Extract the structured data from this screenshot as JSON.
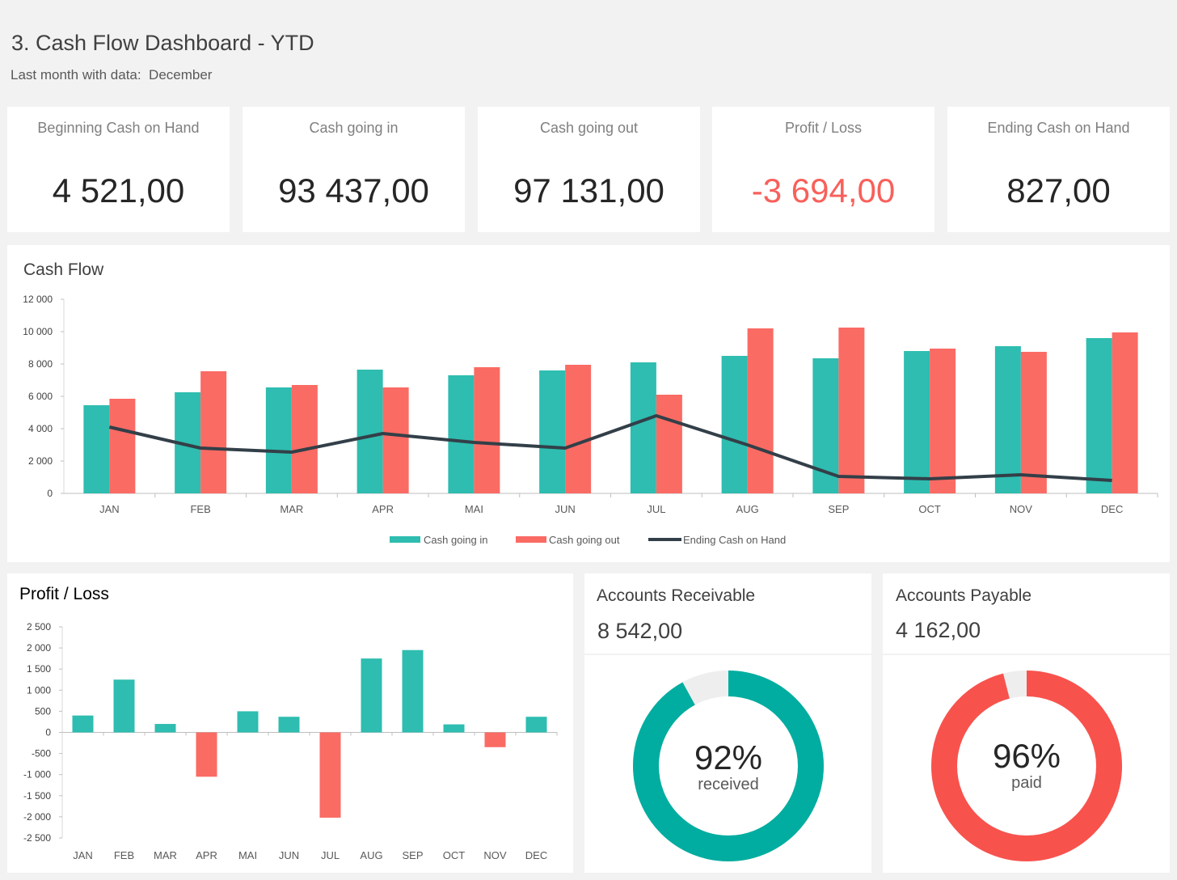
{
  "header": {
    "title": "3. Cash Flow Dashboard - YTD",
    "subtitle_label": "Last month with data:",
    "subtitle_value": "December"
  },
  "kpis": [
    {
      "label": "Beginning Cash on Hand",
      "value": "4 521,00"
    },
    {
      "label": "Cash going in",
      "value": "93 437,00"
    },
    {
      "label": "Cash going out",
      "value": "97 131,00"
    },
    {
      "label": "Profit / Loss",
      "value": "-3 694,00"
    },
    {
      "label": "Ending Cash on Hand",
      "value": "827,00"
    }
  ],
  "colors": {
    "teal": "#2ebdb0",
    "salmon": "#fa6b64",
    "dark": "#333f48",
    "donut_teal": "#00ada0",
    "donut_red": "#f8524d",
    "donut_rest": "#eeeeee"
  },
  "cashflow": {
    "title": "Cash Flow",
    "chart_data": {
      "type": "bar",
      "title": "Cash Flow",
      "categories": [
        "JAN",
        "FEB",
        "MAR",
        "APR",
        "MAI",
        "JUN",
        "JUL",
        "AUG",
        "SEP",
        "OCT",
        "NOV",
        "DEC"
      ],
      "series": [
        {
          "name": "Cash going in",
          "type": "bar",
          "values": [
            5450,
            6250,
            6550,
            7650,
            7300,
            7600,
            8100,
            8500,
            8350,
            8800,
            9100,
            9600
          ]
        },
        {
          "name": "Cash going out",
          "type": "bar",
          "values": [
            5850,
            7550,
            6700,
            6550,
            7800,
            7950,
            6100,
            10200,
            10250,
            8950,
            8750,
            9950
          ]
        },
        {
          "name": "Ending Cash on Hand",
          "type": "line",
          "values": [
            4100,
            2800,
            2550,
            3700,
            3150,
            2800,
            4800,
            3000,
            1050,
            900,
            1150,
            800
          ]
        }
      ],
      "ylim": [
        0,
        12000
      ],
      "yticks": [
        0,
        2000,
        4000,
        6000,
        8000,
        10000,
        12000
      ],
      "ytick_labels": [
        "0",
        "2 000",
        "4 000",
        "6 000",
        "8 000",
        "10 000",
        "12 000"
      ],
      "legend": "bottom"
    }
  },
  "profitloss": {
    "title": "Profit / Loss",
    "chart_data": {
      "type": "bar",
      "title": "Profit / Loss",
      "categories": [
        "JAN",
        "FEB",
        "MAR",
        "APR",
        "MAI",
        "JUN",
        "JUL",
        "AUG",
        "SEP",
        "OCT",
        "NOV",
        "DEC"
      ],
      "values": [
        400,
        1250,
        200,
        -1050,
        500,
        370,
        -2020,
        1750,
        1950,
        190,
        -350,
        370
      ],
      "ylim": [
        -2500,
        2500
      ],
      "yticks": [
        -2500,
        -2000,
        -1500,
        -1000,
        -500,
        0,
        500,
        1000,
        1500,
        2000,
        2500
      ],
      "ytick_labels": [
        "-2 500",
        "-2 000",
        "-1 500",
        "-1 000",
        "-500",
        "0",
        "500",
        "1 000",
        "1 500",
        "2 000",
        "2 500"
      ]
    }
  },
  "receivable": {
    "title": "Accounts Receivable",
    "amount": "8 542,00",
    "percent": "92%",
    "percent_value": 92,
    "caption": "received"
  },
  "payable": {
    "title": "Accounts Payable",
    "amount": "4 162,00",
    "percent": "96%",
    "percent_value": 96,
    "caption": "paid"
  }
}
